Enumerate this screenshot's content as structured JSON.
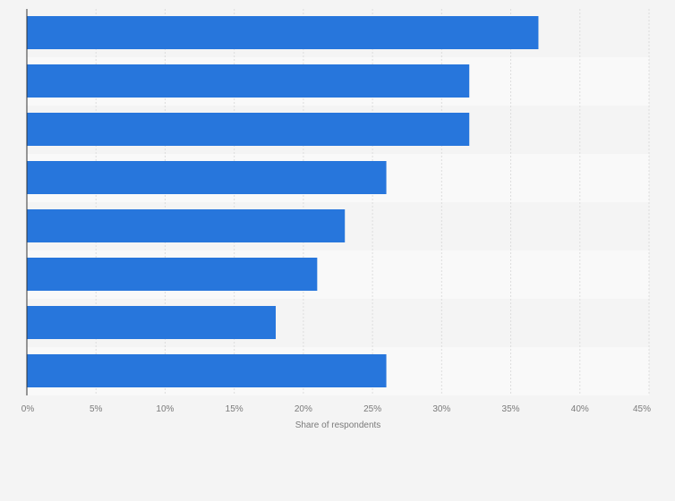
{
  "chart_data": {
    "type": "bar",
    "orientation": "horizontal",
    "categories": [
      "",
      "",
      "",
      "",
      "",
      "",
      "",
      ""
    ],
    "values": [
      37,
      32,
      32,
      26,
      23,
      21,
      18,
      26
    ],
    "xlabel": "Share of respondents",
    "ylabel": "",
    "xlim": [
      0,
      45
    ],
    "x_ticks": [
      0,
      5,
      10,
      15,
      20,
      25,
      30,
      35,
      40,
      45
    ],
    "x_tick_labels": [
      "0%",
      "5%",
      "10%",
      "15%",
      "20%",
      "25%",
      "30%",
      "35%",
      "40%",
      "45%"
    ],
    "grid": true,
    "bar_color": "#2776dc",
    "band_colors": [
      "#f4f4f4",
      "#f9f9f9"
    ],
    "gridline_color": "#dddddd",
    "axis_color": "#333333"
  }
}
